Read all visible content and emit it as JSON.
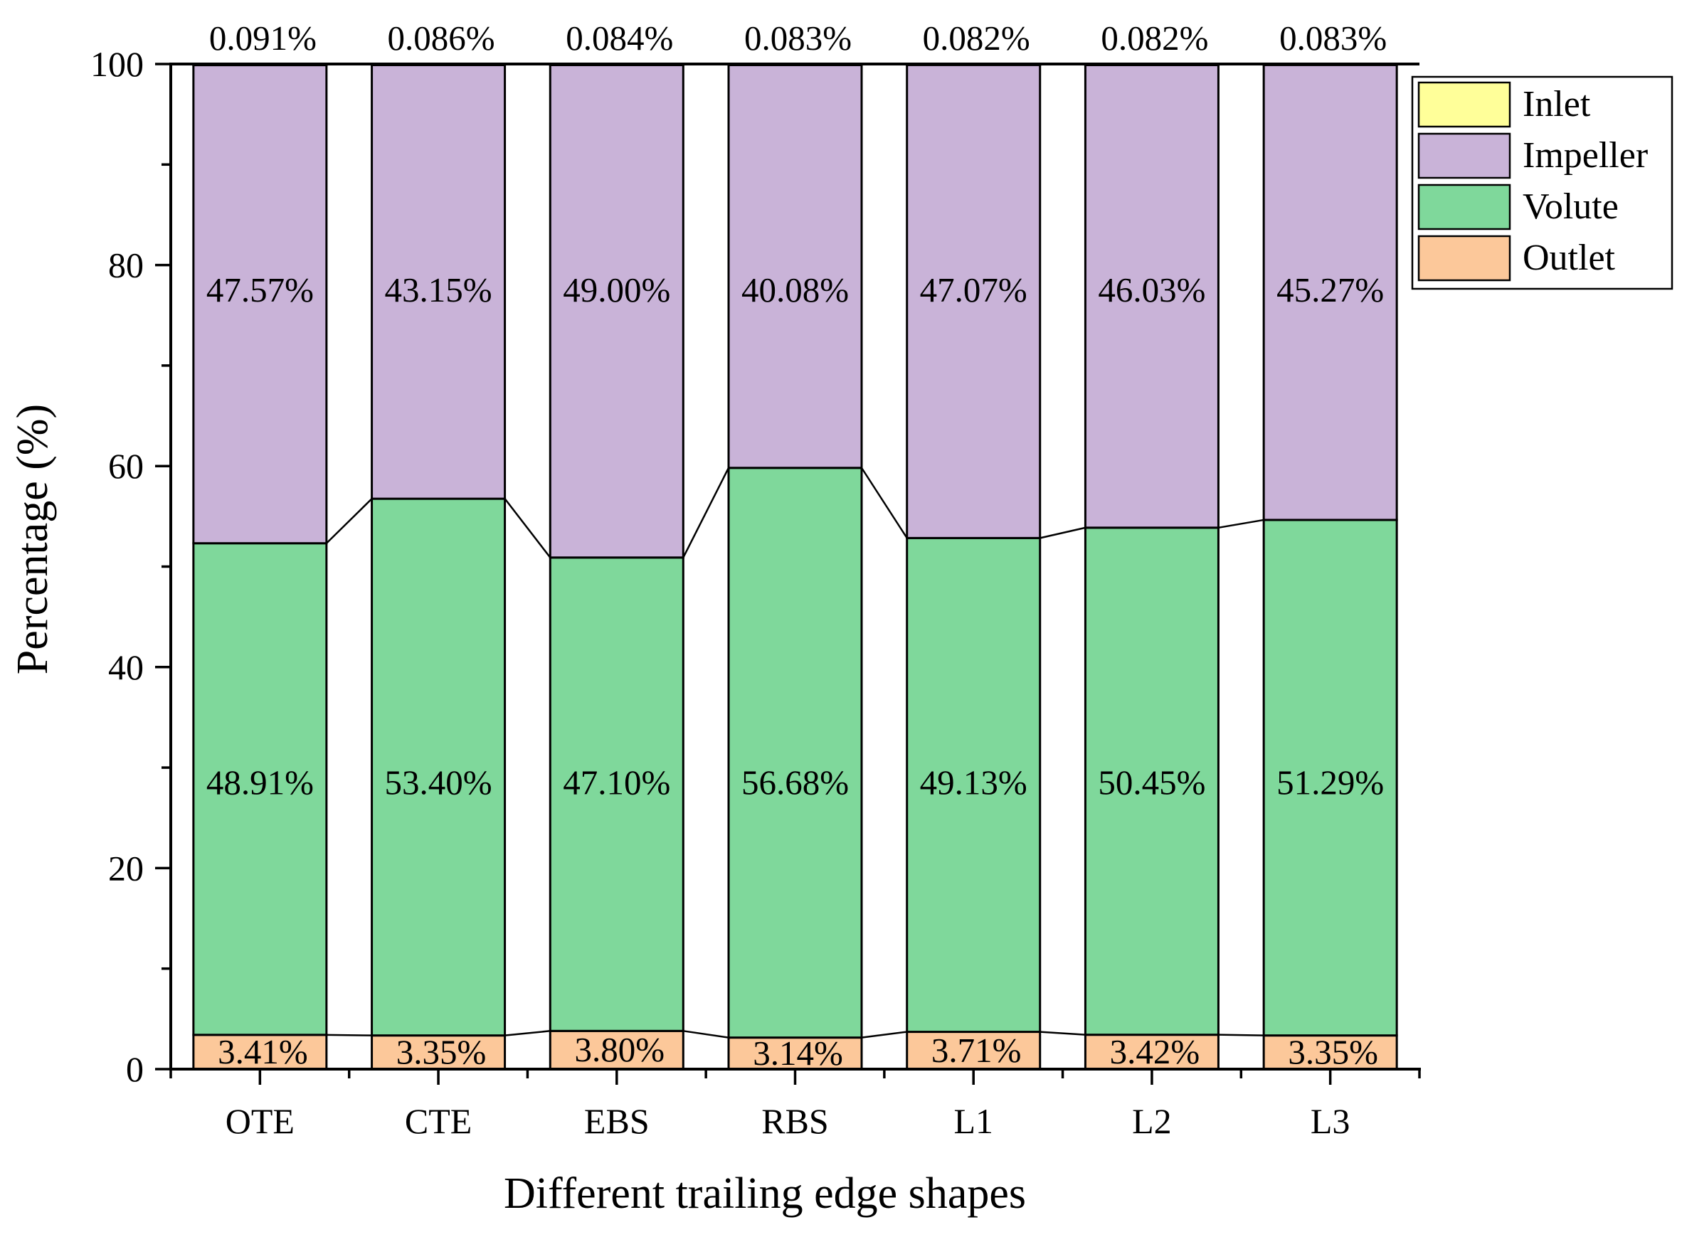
{
  "chart_data": {
    "type": "bar",
    "stacked": true,
    "title": "",
    "xlabel": "Different trailing edge shapes",
    "ylabel": "Percentage (%)",
    "ylim": [
      0,
      100
    ],
    "yticks": [
      0,
      20,
      40,
      60,
      80,
      100
    ],
    "grid": false,
    "legend_position": "top-right",
    "categories": [
      "OTE",
      "CTE",
      "EBS",
      "RBS",
      "L1",
      "L2",
      "L3"
    ],
    "series": [
      {
        "name": "Outlet",
        "color": "#FCC89A",
        "values": [
          3.41,
          3.35,
          3.8,
          3.14,
          3.71,
          3.42,
          3.35
        ],
        "labels": [
          "3.41%",
          "3.35%",
          "3.80%",
          "3.14%",
          "3.71%",
          "3.42%",
          "3.35%"
        ]
      },
      {
        "name": "Volute",
        "color": "#7FD89B",
        "values": [
          48.91,
          53.4,
          47.1,
          56.68,
          49.13,
          50.45,
          51.29
        ],
        "labels": [
          "48.91%",
          "53.40%",
          "47.10%",
          "56.68%",
          "49.13%",
          "50.45%",
          "51.29%"
        ]
      },
      {
        "name": "Impeller",
        "color": "#C9B3D8",
        "values": [
          47.57,
          43.15,
          49.0,
          40.08,
          47.07,
          46.03,
          45.27
        ],
        "labels": [
          "47.57%",
          "43.15%",
          "49.00%",
          "40.08%",
          "47.07%",
          "46.03%",
          "45.27%"
        ]
      },
      {
        "name": "Inlet",
        "color": "#FFFF99",
        "values": [
          0.091,
          0.086,
          0.084,
          0.083,
          0.082,
          0.082,
          0.083
        ],
        "labels": [
          "0.091%",
          "0.086%",
          "0.084%",
          "0.083%",
          "0.082%",
          "0.082%",
          "0.083%"
        ]
      }
    ],
    "legend_order": [
      "Inlet",
      "Impeller",
      "Volute",
      "Outlet"
    ]
  }
}
